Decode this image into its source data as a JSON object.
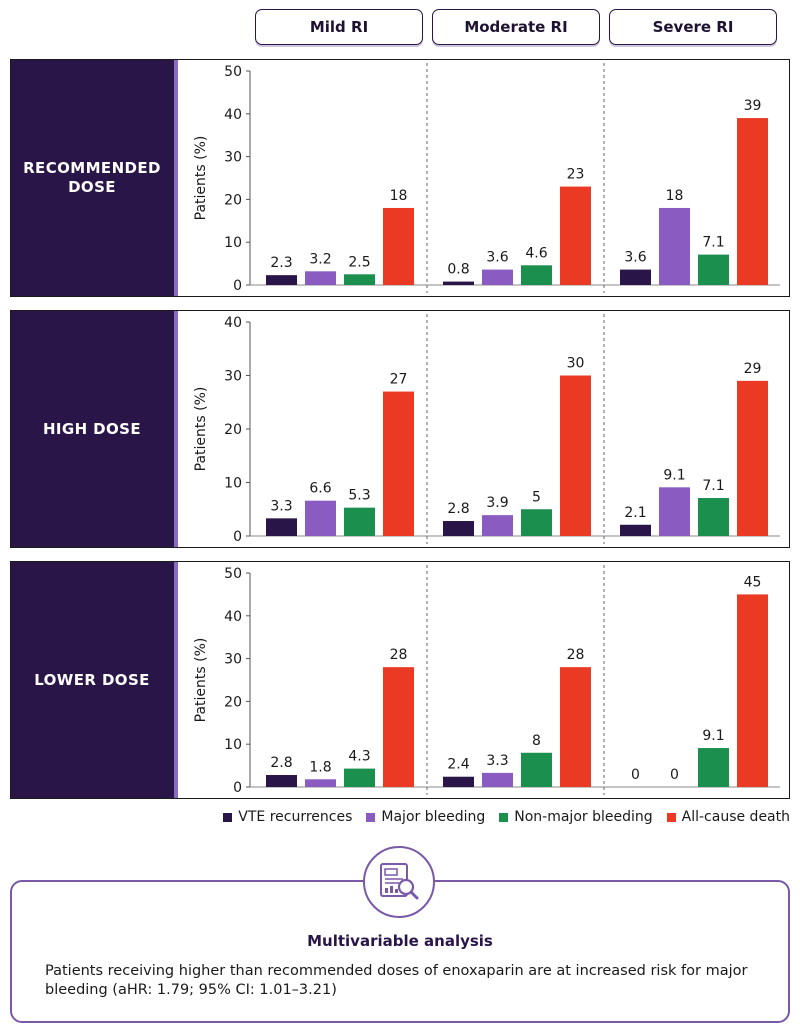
{
  "columns": [
    "Mild RI",
    "Moderate RI",
    "Severe RI"
  ],
  "legend": {
    "items": [
      {
        "label": "VTE recurrences",
        "color": "#2a1548"
      },
      {
        "label": "Major bleeding",
        "color": "#8a5cc2"
      },
      {
        "label": "Non-major bleeding",
        "color": "#1a8f4e"
      },
      {
        "label": "All-cause death",
        "color": "#ea3a24"
      }
    ]
  },
  "chart_data": [
    {
      "type": "bar",
      "row_label": "RECOMMENDED DOSE",
      "ylabel": "Patients (%)",
      "ylim": [
        0,
        50
      ],
      "yticks": [
        0,
        10,
        20,
        30,
        40,
        50
      ],
      "groups": [
        "Mild RI",
        "Moderate RI",
        "Severe RI"
      ],
      "series": [
        {
          "name": "VTE recurrences",
          "values": [
            2.3,
            0.8,
            3.6
          ],
          "labels": [
            "2.3",
            "0.8",
            "3.6"
          ]
        },
        {
          "name": "Major bleeding",
          "values": [
            3.2,
            3.6,
            18
          ],
          "labels": [
            "3.2",
            "3.6",
            "18"
          ]
        },
        {
          "name": "Non-major bleeding",
          "values": [
            2.5,
            4.6,
            7.1
          ],
          "labels": [
            "2.5",
            "4.6",
            "7.1"
          ]
        },
        {
          "name": "All-cause death",
          "values": [
            18,
            23,
            39
          ],
          "labels": [
            "18",
            "23",
            "39"
          ]
        }
      ]
    },
    {
      "type": "bar",
      "row_label": "HIGH DOSE",
      "ylabel": "Patients (%)",
      "ylim": [
        0,
        40
      ],
      "yticks": [
        0,
        10,
        20,
        30,
        40
      ],
      "groups": [
        "Mild RI",
        "Moderate RI",
        "Severe RI"
      ],
      "series": [
        {
          "name": "VTE recurrences",
          "values": [
            3.3,
            2.8,
            2.1
          ],
          "labels": [
            "3.3",
            "2.8",
            "2.1"
          ]
        },
        {
          "name": "Major bleeding",
          "values": [
            6.6,
            3.9,
            9.1
          ],
          "labels": [
            "6.6",
            "3.9",
            "9.1"
          ]
        },
        {
          "name": "Non-major bleeding",
          "values": [
            5.3,
            5,
            7.1
          ],
          "labels": [
            "5.3",
            "5",
            "7.1"
          ]
        },
        {
          "name": "All-cause death",
          "values": [
            27,
            30,
            29
          ],
          "labels": [
            "27",
            "30",
            "29"
          ]
        }
      ]
    },
    {
      "type": "bar",
      "row_label": "LOWER DOSE",
      "ylabel": "Patients (%)",
      "ylim": [
        0,
        50
      ],
      "yticks": [
        0,
        10,
        20,
        30,
        40,
        50
      ],
      "groups": [
        "Mild RI",
        "Moderate RI",
        "Severe RI"
      ],
      "series": [
        {
          "name": "VTE recurrences",
          "values": [
            2.8,
            2.4,
            0
          ],
          "labels": [
            "2.8",
            "2.4",
            "0"
          ]
        },
        {
          "name": "Major bleeding",
          "values": [
            1.8,
            3.3,
            0
          ],
          "labels": [
            "1.8",
            "3.3",
            "0"
          ]
        },
        {
          "name": "Non-major bleeding",
          "values": [
            4.3,
            8,
            9.1
          ],
          "labels": [
            "4.3",
            "8",
            "9.1"
          ]
        },
        {
          "name": "All-cause death",
          "values": [
            28,
            28,
            45
          ],
          "labels": [
            "28",
            "28",
            "45"
          ]
        }
      ]
    }
  ],
  "analysis": {
    "title": "Multivariable analysis",
    "icon": "document-magnifier-icon",
    "text": "Patients receiving higher than recommended doses of enoxaparin are at increased risk for major bleeding (aHR: 1.79; 95% CI: 1.01–3.21)"
  }
}
